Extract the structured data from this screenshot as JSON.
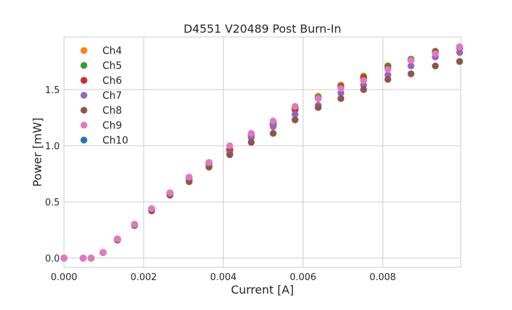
{
  "chart_data": {
    "type": "scatter",
    "title": "D4551 V20489 Post Burn-In",
    "xlabel": "Current [A]",
    "ylabel": "Power [mW]",
    "xlim": [
      0,
      0.00996
    ],
    "ylim": [
      -0.082,
      1.968
    ],
    "grid": true,
    "legend_position": "top-left",
    "xticks": [
      0,
      0.002,
      0.004,
      0.006,
      0.008
    ],
    "xtick_labels": [
      "0.000",
      "0.002",
      "0.004",
      "0.006",
      "0.008"
    ],
    "yticks": [
      0,
      0.5,
      1.0,
      1.5
    ],
    "ytick_labels": [
      "0.0",
      "0.5",
      "1.0",
      "1.5"
    ],
    "x": [
      0,
      0.00048,
      0.00068,
      0.00098,
      0.00134,
      0.00177,
      0.0022,
      0.00266,
      0.00314,
      0.00364,
      0.00416,
      0.0047,
      0.00525,
      0.0058,
      0.00638,
      0.00695,
      0.00752,
      0.00813,
      0.00871,
      0.00932,
      0.00993
    ],
    "series": [
      {
        "name": "Ch4",
        "color": "#ff7f0e",
        "values": [
          0,
          0,
          0,
          0.05,
          0.17,
          0.3,
          0.44,
          0.58,
          0.72,
          0.85,
          0.97,
          1.1,
          1.21,
          1.34,
          1.44,
          1.54,
          1.62,
          1.71,
          1.77,
          1.84,
          1.88
        ]
      },
      {
        "name": "Ch5",
        "color": "#2ca02c",
        "values": [
          0,
          0,
          0,
          0.05,
          0.17,
          0.3,
          0.44,
          0.58,
          0.72,
          0.85,
          0.96,
          1.09,
          1.2,
          1.33,
          1.43,
          1.53,
          1.61,
          1.71,
          1.77,
          1.84,
          1.88
        ]
      },
      {
        "name": "Ch6",
        "color": "#d62728",
        "values": [
          0,
          0,
          0,
          0.05,
          0.17,
          0.3,
          0.43,
          0.57,
          0.71,
          0.84,
          0.96,
          1.08,
          1.19,
          1.32,
          1.42,
          1.52,
          1.6,
          1.69,
          1.76,
          1.83,
          1.87
        ]
      },
      {
        "name": "Ch7",
        "color": "#9467bd",
        "values": [
          0,
          0,
          0,
          0.05,
          0.16,
          0.3,
          0.43,
          0.57,
          0.7,
          0.83,
          0.93,
          1.07,
          1.17,
          1.28,
          1.36,
          1.47,
          1.54,
          1.63,
          1.71,
          1.79,
          1.83
        ]
      },
      {
        "name": "Ch8",
        "color": "#8c564b",
        "values": [
          0,
          0,
          0,
          0.05,
          0.16,
          0.29,
          0.42,
          0.56,
          0.68,
          0.81,
          0.92,
          1.03,
          1.11,
          1.23,
          1.34,
          1.42,
          1.5,
          1.59,
          1.64,
          1.71,
          1.75
        ]
      },
      {
        "name": "Ch9",
        "color": "#e377c2",
        "values": [
          0,
          0,
          0,
          0.05,
          0.17,
          0.3,
          0.44,
          0.58,
          0.72,
          0.85,
          1.0,
          1.11,
          1.22,
          1.35,
          1.42,
          1.51,
          1.58,
          1.68,
          1.76,
          1.82,
          1.88
        ]
      },
      {
        "name": "Ch10",
        "color": "#1f77b4",
        "values": [
          0,
          0,
          0,
          0.05,
          0.17,
          0.3,
          0.44,
          0.58,
          0.72,
          0.85,
          0.97,
          1.1,
          1.21,
          1.34,
          1.44,
          1.54,
          1.62,
          1.71,
          1.77,
          1.84,
          1.88
        ]
      }
    ]
  }
}
